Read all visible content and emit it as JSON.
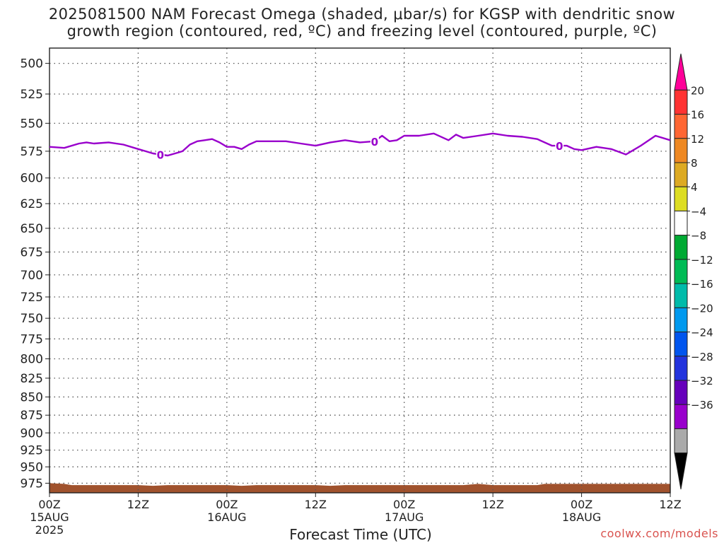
{
  "title": {
    "line1": "2025081500 NAM Forecast Omega (shaded, μbar/s) for KGSP with dendritic snow",
    "line2": "growth region (contoured, red, ºC) and freezing level (contoured, purple, ºC)"
  },
  "credit": "coolwx.com/models",
  "chart_data": {
    "type": "line",
    "title": "2025081500 NAM Forecast Omega (shaded, μbar/s) for KGSP with dendritic snow growth region (contoured, red, ºC) and freezing level (contoured, purple, ºC)",
    "xlabel": "Forecast Time (UTC)",
    "ylabel": "",
    "x_range_hours": [
      0,
      84
    ],
    "y_range_hPa": [
      488,
      990
    ],
    "y_scale": "log-pressure (inverted)",
    "grid": true,
    "x_ticks": [
      {
        "hour": 0,
        "line1": "00Z",
        "line2": "15AUG",
        "line3": "2025"
      },
      {
        "hour": 12,
        "line1": "12Z",
        "line2": "",
        "line3": ""
      },
      {
        "hour": 24,
        "line1": "00Z",
        "line2": "16AUG",
        "line3": ""
      },
      {
        "hour": 36,
        "line1": "12Z",
        "line2": "",
        "line3": ""
      },
      {
        "hour": 48,
        "line1": "00Z",
        "line2": "17AUG",
        "line3": ""
      },
      {
        "hour": 60,
        "line1": "12Z",
        "line2": "",
        "line3": ""
      },
      {
        "hour": 72,
        "line1": "00Z",
        "line2": "18AUG",
        "line3": ""
      },
      {
        "hour": 84,
        "line1": "12Z",
        "line2": "",
        "line3": ""
      }
    ],
    "y_ticks": [
      "500",
      "525",
      "550",
      "575",
      "600",
      "625",
      "650",
      "675",
      "700",
      "725",
      "750",
      "775",
      "800",
      "825",
      "850",
      "875",
      "900",
      "925",
      "950",
      "975"
    ],
    "freezing_level": {
      "name": "freezing level",
      "color": "#9900cc",
      "contour_label": "0",
      "label_hours": [
        15,
        44,
        69
      ],
      "x": [
        0,
        2,
        4,
        5,
        6,
        8,
        10,
        12,
        13,
        14,
        15,
        16,
        17,
        18,
        19,
        20,
        21,
        22,
        23,
        24,
        25,
        26,
        27,
        28,
        30,
        32,
        34,
        36,
        38,
        40,
        42,
        44,
        45,
        46,
        47,
        48,
        50,
        52,
        54,
        55,
        56,
        58,
        60,
        62,
        64,
        66,
        68,
        70,
        71,
        72,
        74,
        76,
        78,
        80,
        82,
        84
      ],
      "y": [
        571,
        572,
        568,
        567,
        568,
        567,
        569,
        573,
        575,
        577,
        578,
        579,
        577,
        575,
        569,
        566,
        565,
        564,
        567,
        571,
        571,
        573,
        569,
        566,
        566,
        566,
        568,
        570,
        567,
        565,
        567,
        566,
        561,
        566,
        565,
        561,
        561,
        559,
        565,
        560,
        563,
        561,
        559,
        561,
        562,
        564,
        570,
        570,
        573,
        574,
        571,
        573,
        578,
        570,
        561,
        565
      ]
    },
    "omega_colorbar": {
      "units": "μbar/s",
      "levels": [
        "20",
        "16",
        "12",
        "8",
        "4",
        "−4",
        "−8",
        "−12",
        "−16",
        "−20",
        "−24",
        "−28",
        "−32",
        "−36"
      ],
      "colors": [
        "#ff0099",
        "#ff3333",
        "#ff6633",
        "#ee8822",
        "#ddaa22",
        "#dddd22",
        "#ffffff",
        "#00aa33",
        "#00bb55",
        "#00bbaa",
        "#0099ee",
        "#0055ee",
        "#2233dd",
        "#6600bb",
        "#9900cc",
        "#aaaaaa",
        "#000000"
      ]
    },
    "terrain": {
      "name": "terrain",
      "color": "#a0522d",
      "x": [
        0,
        2,
        3,
        12,
        14,
        16,
        24,
        26,
        28,
        36,
        38,
        40,
        44,
        48,
        52,
        56,
        58,
        60,
        62,
        64,
        66,
        67,
        70,
        84
      ],
      "y": [
        975,
        976,
        978,
        978,
        979,
        978,
        978,
        979,
        978,
        978,
        979,
        978,
        978,
        978,
        978,
        978,
        976,
        978,
        978,
        978,
        978,
        976,
        976,
        976
      ]
    }
  }
}
